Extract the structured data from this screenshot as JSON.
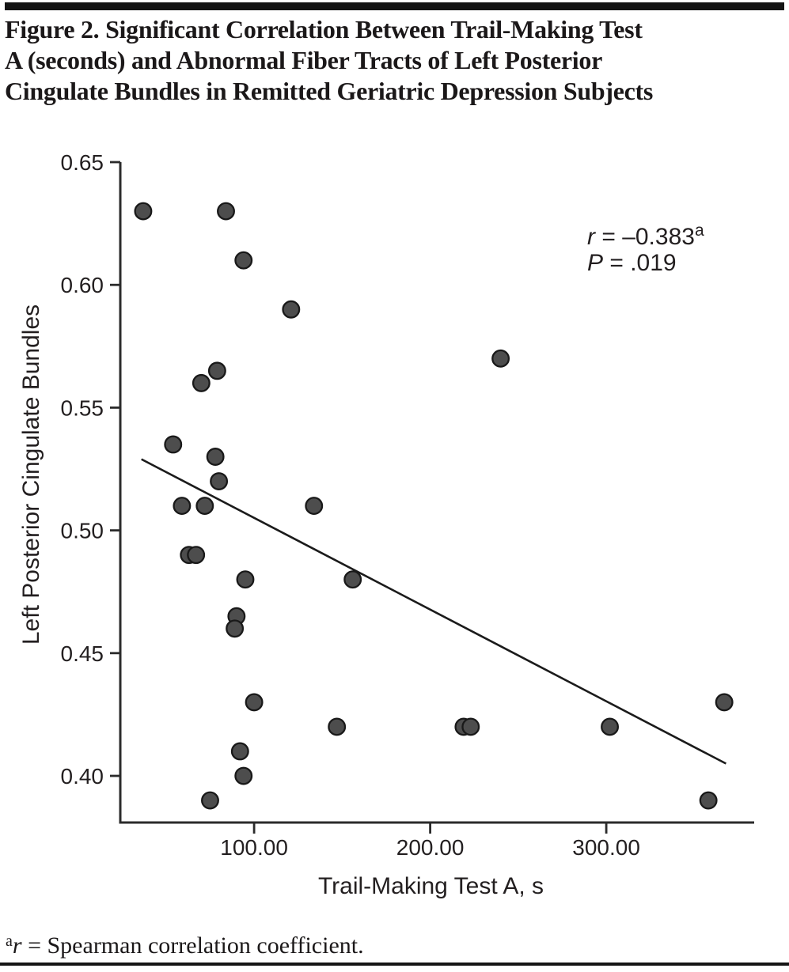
{
  "figure": {
    "title_lines": [
      "Figure 2. Significant Correlation Between Trail-Making Test",
      "A (seconds) and Abnormal Fiber Tracts of Left Posterior",
      "Cingulate Bundles in Remitted Geriatric Depression Subjects"
    ]
  },
  "chart_data": {
    "type": "scatter",
    "title": "",
    "xlabel": "Trail-Making Test A, s",
    "ylabel": "Left Posterior Cingulate Bundles",
    "xlim": [
      24,
      384
    ],
    "ylim": [
      0.381,
      0.65
    ],
    "grid": false,
    "xticks": {
      "values": [
        100,
        200,
        300
      ],
      "labels": [
        "100.00",
        "200.00",
        "300.00"
      ]
    },
    "yticks": {
      "values": [
        0.65,
        0.6,
        0.55,
        0.5,
        0.45,
        0.4
      ],
      "labels": [
        "0.65",
        "0.60",
        "0.55",
        "0.50",
        "0.45",
        "0.40"
      ]
    },
    "points": [
      [
        37,
        0.63
      ],
      [
        84,
        0.63
      ],
      [
        94,
        0.61
      ],
      [
        121,
        0.59
      ],
      [
        240,
        0.57
      ],
      [
        79,
        0.565
      ],
      [
        70,
        0.56
      ],
      [
        54,
        0.535
      ],
      [
        78,
        0.53
      ],
      [
        80,
        0.52
      ],
      [
        59,
        0.51
      ],
      [
        72,
        0.51
      ],
      [
        134,
        0.51
      ],
      [
        63,
        0.49
      ],
      [
        67,
        0.49
      ],
      [
        95,
        0.48
      ],
      [
        156,
        0.48
      ],
      [
        90,
        0.465
      ],
      [
        89,
        0.46
      ],
      [
        100,
        0.43
      ],
      [
        147,
        0.42
      ],
      [
        92,
        0.41
      ],
      [
        94,
        0.4
      ],
      [
        75,
        0.39
      ],
      [
        219,
        0.42
      ],
      [
        223,
        0.42
      ],
      [
        302,
        0.42
      ],
      [
        367,
        0.43
      ],
      [
        358,
        0.39
      ]
    ],
    "trend_line": {
      "x1": 36,
      "y1": 0.529,
      "x2": 368,
      "y2": 0.405
    },
    "annotation": {
      "r_var": "r",
      "r_rest": " = –0.383",
      "r_sup": "a",
      "p_var": "P",
      "p_rest": " = .019"
    },
    "legend": null,
    "colors": {
      "point_fill": "#4d4d4d",
      "point_stroke": "#191919",
      "axis": "#2b2b2b",
      "text": "#231f20",
      "trend": "#1b1b1b"
    }
  },
  "footnote": {
    "sup": "a",
    "var": "r",
    "rest": " = Spearman correlation coefficient."
  }
}
